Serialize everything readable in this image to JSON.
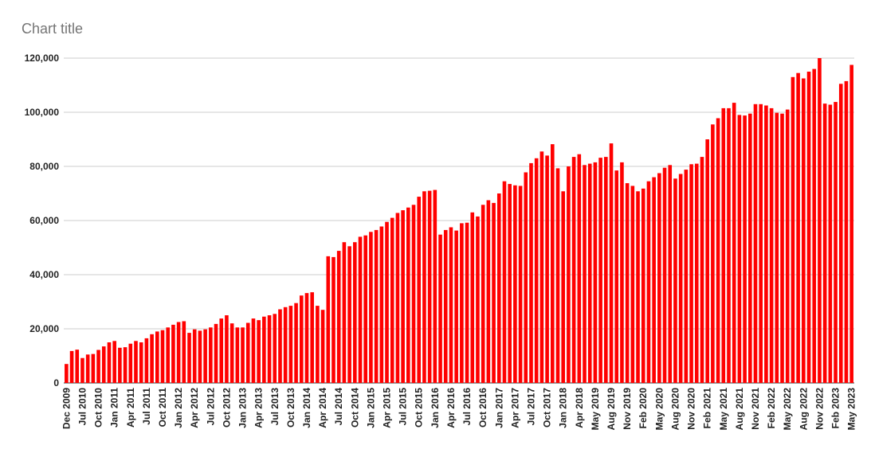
{
  "chart_data": {
    "type": "bar",
    "title": "Chart title",
    "color": "#ff0000",
    "grid": true,
    "ylim": [
      0,
      120000
    ],
    "yticks": [
      0,
      {
        "value": 20000,
        "label": "20,000"
      },
      {
        "value": 40000,
        "label": "40,000"
      },
      {
        "value": 60000,
        "label": "60,000"
      },
      {
        "value": 80000,
        "label": "80,000"
      },
      {
        "value": 100000,
        "label": "100,000"
      },
      {
        "value": 120000,
        "label": "120,000"
      }
    ],
    "categories": [
      "Dec 2009",
      null,
      null,
      "Jul 2010",
      null,
      null,
      "Oct 2010",
      null,
      null,
      "Jan 2011",
      null,
      null,
      "Apr 2011",
      null,
      null,
      "Jul 2011",
      null,
      null,
      "Oct 2011",
      null,
      null,
      "Jan 2012",
      null,
      null,
      "Apr 2012",
      null,
      null,
      "Jul 2012",
      null,
      null,
      "Oct 2012",
      null,
      null,
      "Jan 2013",
      null,
      null,
      "Apr 2013",
      null,
      null,
      "Jul 2013",
      null,
      null,
      "Oct 2013",
      null,
      null,
      "Jan 2014",
      null,
      null,
      "Apr 2014",
      null,
      null,
      "Jul 2014",
      null,
      null,
      "Oct 2014",
      null,
      null,
      "Jan 2015",
      null,
      null,
      "Apr 2015",
      null,
      null,
      "Jul 2015",
      null,
      null,
      "Oct 2015",
      null,
      null,
      "Jan 2016",
      null,
      null,
      "Apr 2016",
      null,
      null,
      "Jul 2016",
      null,
      null,
      "Oct 2016",
      null,
      null,
      "Jan 2017",
      null,
      null,
      "Apr 2017",
      null,
      null,
      "Jul 2017",
      null,
      null,
      "Oct 2017",
      null,
      null,
      "Jan 2018",
      null,
      null,
      "Apr 2018",
      null,
      null,
      "May 2019",
      null,
      null,
      "Aug 2019",
      null,
      null,
      "Nov 2019",
      null,
      null,
      "Feb 2020",
      null,
      null,
      "May 2020",
      null,
      null,
      "Aug 2020",
      null,
      null,
      "Nov 2020",
      null,
      null,
      "Feb 2021",
      null,
      null,
      "May 2021",
      null,
      null,
      "Aug 2021",
      null,
      null,
      "Nov 2021",
      null,
      null,
      "Feb 2022",
      null,
      null,
      "May 2022",
      null,
      null,
      "Aug 2022",
      null,
      null,
      "Nov 2022",
      null,
      null,
      "Feb 2023",
      null,
      null,
      "May 2023"
    ],
    "values": [
      7000,
      11800,
      12300,
      9200,
      10500,
      10700,
      12200,
      13500,
      15000,
      15500,
      13000,
      13200,
      14500,
      15500,
      15000,
      16500,
      18000,
      19000,
      19500,
      20500,
      21500,
      22500,
      22800,
      18500,
      19800,
      19300,
      19800,
      20500,
      21800,
      23800,
      25000,
      22000,
      20500,
      20500,
      22200,
      23800,
      23200,
      24500,
      25000,
      25500,
      27200,
      28000,
      28500,
      29500,
      32300,
      33200,
      33500,
      28500,
      27000,
      46800,
      46500,
      48800,
      52000,
      50500,
      52000,
      54000,
      54500,
      55800,
      56500,
      57800,
      59500,
      61000,
      62800,
      63800,
      64800,
      65800,
      68800,
      70800,
      71000,
      71300,
      54800,
      56500,
      57500,
      56300,
      59000,
      59200,
      63000,
      61500,
      65800,
      67500,
      66500,
      70000,
      74500,
      73500,
      73000,
      72800,
      77800,
      81200,
      83000,
      85500,
      84000,
      88200,
      79300,
      70800,
      80000,
      83500,
      84500,
      80500,
      81000,
      81500,
      83200,
      83500,
      88500,
      78500,
      81500,
      73800,
      72800,
      70800,
      71800,
      74500,
      76000,
      77500,
      79500,
      80500,
      75500,
      77200,
      78800,
      80800,
      81000,
      83500,
      90000,
      95500,
      97800,
      101500,
      101500,
      103500,
      99000,
      98800,
      99500,
      103000,
      103000,
      102500,
      101500,
      99800,
      99500,
      101000,
      113000,
      114500,
      112500,
      115000,
      116000,
      120000,
      103200,
      102800,
      103800,
      110500,
      111500,
      117500
    ]
  }
}
